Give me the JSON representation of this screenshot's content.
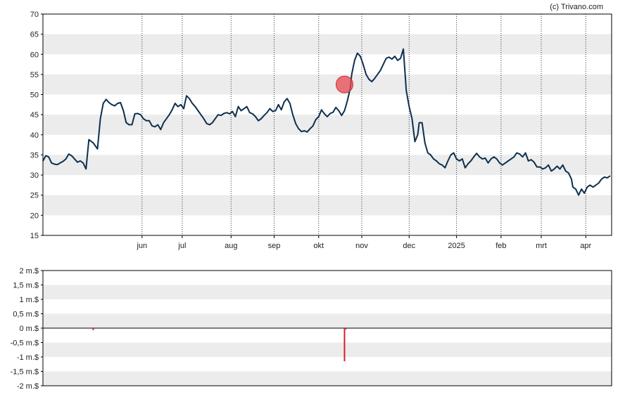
{
  "credit": "(c) Trivano.com",
  "chart_data": [
    {
      "type": "line",
      "title": "",
      "xlabel": "",
      "ylabel": "",
      "ylim": [
        15,
        70
      ],
      "y_ticks": [
        "70",
        "65",
        "60",
        "55",
        "50",
        "45",
        "40",
        "35",
        "30",
        "25",
        "20",
        "15"
      ],
      "x_ticks": [
        "jun",
        "jul",
        "aug",
        "sep",
        "okt",
        "nov",
        "dec",
        "2025",
        "feb",
        "mrt",
        "apr"
      ],
      "grid": "alternating horizontal bands; dotted vertical lines at month starts",
      "line_color": "#0d2f4f",
      "series": [
        {
          "values": [
            [
              0,
              33.5
            ],
            [
              2,
              34.8
            ],
            [
              4,
              34.5
            ],
            [
              6,
              33
            ],
            [
              8,
              32.7
            ],
            [
              10,
              32.6
            ],
            [
              12,
              33
            ],
            [
              14,
              33.4
            ],
            [
              16,
              34
            ],
            [
              18,
              35.2
            ],
            [
              20,
              34.8
            ],
            [
              22,
              34
            ],
            [
              24,
              33.2
            ],
            [
              26,
              33.5
            ],
            [
              28,
              33
            ],
            [
              30,
              31.5
            ],
            [
              32,
              38.8
            ],
            [
              35,
              38
            ],
            [
              38,
              36.5
            ],
            [
              40,
              44
            ],
            [
              42,
              47.8
            ],
            [
              44,
              48.8
            ],
            [
              46,
              48
            ],
            [
              48,
              47.5
            ],
            [
              50,
              47.2
            ],
            [
              52,
              47.8
            ],
            [
              54,
              48
            ],
            [
              56,
              46
            ],
            [
              58,
              43
            ],
            [
              60,
              42.5
            ],
            [
              62,
              42.5
            ],
            [
              64,
              45.2
            ],
            [
              66,
              45.3
            ],
            [
              68,
              45
            ],
            [
              70,
              44
            ],
            [
              72,
              43.5
            ],
            [
              74,
              43.5
            ],
            [
              76,
              42.2
            ],
            [
              78,
              42
            ],
            [
              80,
              42.5
            ],
            [
              82,
              41.3
            ],
            [
              84,
              43
            ],
            [
              86,
              44
            ],
            [
              88,
              45
            ],
            [
              90,
              46.2
            ],
            [
              92,
              47.8
            ],
            [
              94,
              47
            ],
            [
              96,
              47.5
            ],
            [
              98,
              46.5
            ],
            [
              100,
              49.7
            ],
            [
              102,
              49
            ],
            [
              104,
              47.8
            ],
            [
              106,
              47
            ],
            [
              108,
              46
            ],
            [
              110,
              45
            ],
            [
              112,
              44
            ],
            [
              114,
              42.8
            ],
            [
              116,
              42.5
            ],
            [
              118,
              43
            ],
            [
              120,
              44
            ],
            [
              122,
              45
            ],
            [
              124,
              44.8
            ],
            [
              126,
              45.3
            ],
            [
              128,
              45.5
            ],
            [
              130,
              45.2
            ],
            [
              132,
              45.8
            ],
            [
              134,
              44.5
            ],
            [
              136,
              47
            ],
            [
              138,
              46
            ],
            [
              140,
              46.5
            ],
            [
              142,
              47
            ],
            [
              144,
              45.5
            ],
            [
              146,
              45.2
            ],
            [
              148,
              44.5
            ],
            [
              150,
              43.5
            ],
            [
              152,
              44
            ],
            [
              154,
              44.8
            ],
            [
              156,
              45.5
            ],
            [
              158,
              46.5
            ],
            [
              160,
              45.8
            ],
            [
              162,
              46
            ],
            [
              164,
              47.5
            ],
            [
              166,
              46.2
            ],
            [
              168,
              48.2
            ],
            [
              170,
              49
            ],
            [
              172,
              47.8
            ],
            [
              174,
              45
            ],
            [
              176,
              42.8
            ],
            [
              178,
              41.5
            ],
            [
              180,
              40.8
            ],
            [
              182,
              41
            ],
            [
              184,
              40.7
            ],
            [
              186,
              41.5
            ],
            [
              188,
              42.2
            ],
            [
              190,
              43.8
            ],
            [
              192,
              44.5
            ],
            [
              194,
              46.2
            ],
            [
              196,
              45.2
            ],
            [
              198,
              44.5
            ],
            [
              200,
              45.3
            ],
            [
              202,
              45.6
            ],
            [
              204,
              46.8
            ],
            [
              206,
              46
            ],
            [
              208,
              44.8
            ],
            [
              210,
              46
            ],
            [
              212,
              48.5
            ],
            [
              214,
              51.5
            ],
            [
              215,
              55
            ],
            [
              217,
              58.5
            ],
            [
              219,
              60.3
            ],
            [
              221,
              59.5
            ],
            [
              223,
              57.5
            ],
            [
              225,
              55
            ],
            [
              227,
              53.8
            ],
            [
              229,
              53.2
            ],
            [
              231,
              54
            ],
            [
              233,
              55
            ],
            [
              235,
              56
            ],
            [
              237,
              57.5
            ],
            [
              239,
              59
            ],
            [
              241,
              59.3
            ],
            [
              243,
              58.8
            ],
            [
              245,
              59.5
            ],
            [
              247,
              58.5
            ],
            [
              249,
              59
            ],
            [
              251,
              61.3
            ],
            [
              253,
              51
            ],
            [
              255,
              47
            ],
            [
              257,
              44
            ],
            [
              259,
              38.3
            ],
            [
              261,
              40
            ],
            [
              262,
              43
            ],
            [
              264,
              43
            ],
            [
              266,
              38
            ],
            [
              268,
              35.5
            ],
            [
              270,
              35
            ],
            [
              272,
              34
            ],
            [
              274,
              33.5
            ],
            [
              276,
              32.8
            ],
            [
              278,
              32.5
            ],
            [
              280,
              31.8
            ],
            [
              282,
              33.5
            ],
            [
              284,
              35
            ],
            [
              286,
              35.5
            ],
            [
              288,
              34
            ],
            [
              290,
              33.5
            ],
            [
              292,
              34
            ],
            [
              294,
              31.8
            ],
            [
              296,
              32.8
            ],
            [
              298,
              33.5
            ],
            [
              300,
              34.5
            ],
            [
              302,
              35.4
            ],
            [
              304,
              34.5
            ],
            [
              306,
              34
            ],
            [
              308,
              34.2
            ],
            [
              310,
              33
            ],
            [
              312,
              34
            ],
            [
              314,
              34.5
            ],
            [
              316,
              34
            ],
            [
              318,
              33
            ],
            [
              320,
              32.5
            ],
            [
              322,
              33
            ],
            [
              324,
              33.5
            ],
            [
              326,
              34
            ],
            [
              328,
              34.5
            ],
            [
              330,
              35.5
            ],
            [
              332,
              35.2
            ],
            [
              334,
              34.5
            ],
            [
              336,
              35.5
            ],
            [
              338,
              33.5
            ],
            [
              340,
              33.8
            ],
            [
              342,
              33.2
            ],
            [
              344,
              32
            ],
            [
              346,
              32
            ],
            [
              348,
              31.5
            ],
            [
              350,
              31.8
            ],
            [
              352,
              32.5
            ],
            [
              354,
              31
            ],
            [
              356,
              31.5
            ],
            [
              358,
              32.2
            ],
            [
              360,
              31.5
            ],
            [
              362,
              32.5
            ],
            [
              364,
              31
            ],
            [
              366,
              30.5
            ],
            [
              368,
              29
            ],
            [
              369,
              27
            ],
            [
              371,
              26.5
            ],
            [
              373,
              25
            ],
            [
              375,
              26.5
            ],
            [
              377,
              25.5
            ],
            [
              379,
              27
            ],
            [
              381,
              27.5
            ],
            [
              383,
              27
            ],
            [
              385,
              27.5
            ],
            [
              387,
              28
            ],
            [
              389,
              29
            ],
            [
              391,
              29.5
            ],
            [
              393,
              29.3
            ],
            [
              395,
              29.8
            ]
          ]
        }
      ],
      "markers": [
        {
          "x": 210,
          "value": 52.5,
          "color": "#e8474f"
        }
      ]
    },
    {
      "type": "bar",
      "title": "",
      "xlabel": "",
      "ylabel": "",
      "ylim": [
        -2,
        2
      ],
      "y_ticks": [
        "2 m.$",
        "1,5 m.$",
        "1 m.$",
        "0,5 m.$",
        "0 m.$",
        "-0,5 m.$",
        "-1 m.$",
        "-1,5 m.$",
        "-2 m.$"
      ],
      "bar_color": "#d4202a",
      "series": [
        {
          "values": [
            [
              35,
              -0.07
            ],
            [
              210,
              -1.15
            ],
            [
              211,
              -0.04
            ]
          ]
        }
      ]
    }
  ]
}
